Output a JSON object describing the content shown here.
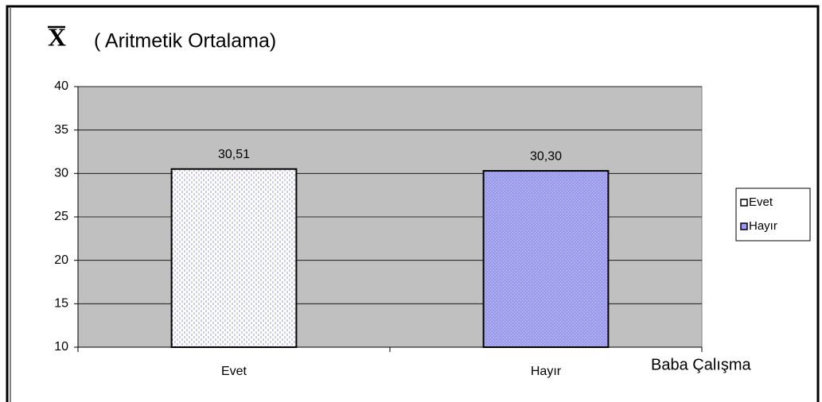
{
  "chart_data": {
    "type": "bar",
    "title_symbol": "X",
    "title": "( Aritmetik Ortalama)",
    "x_label": "Baba Çalışma",
    "categories": [
      "Evet",
      "Hayır"
    ],
    "series": [
      {
        "name": "Evet",
        "color": "#ffffff",
        "values": [
          30.51,
          null
        ],
        "value_labels": [
          "30,51",
          null
        ]
      },
      {
        "name": "Hayır",
        "color": "#9999ff",
        "values": [
          null,
          30.3
        ],
        "value_labels": [
          null,
          "30,30"
        ]
      }
    ],
    "ylim": [
      10,
      40
    ],
    "yticks": [
      10,
      15,
      20,
      25,
      30,
      35,
      40
    ],
    "grid": true,
    "legend": "right"
  }
}
